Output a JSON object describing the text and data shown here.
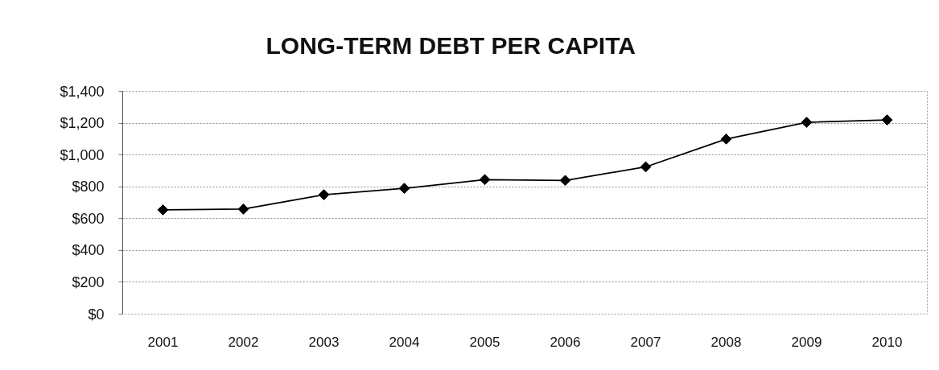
{
  "chart_data": {
    "type": "line",
    "title": "LONG-TERM DEBT PER CAPITA",
    "categories": [
      "2001",
      "2002",
      "2003",
      "2004",
      "2005",
      "2006",
      "2007",
      "2008",
      "2009",
      "2010"
    ],
    "values": [
      655,
      660,
      750,
      790,
      845,
      840,
      925,
      1100,
      1205,
      1220
    ],
    "color": "#000000",
    "ylim": [
      0,
      1400
    ],
    "yticks": [
      {
        "value": 0,
        "label": "$0"
      },
      {
        "value": 200,
        "label": "$200"
      },
      {
        "value": 400,
        "label": "$400"
      },
      {
        "value": 600,
        "label": "$600"
      },
      {
        "value": 800,
        "label": "$800"
      },
      {
        "value": 1000,
        "label": "$1,000"
      },
      {
        "value": 1200,
        "label": "$1,200"
      },
      {
        "value": 1400,
        "label": "$1,400"
      }
    ],
    "grid": "y",
    "marker": "diamond",
    "line_style": "solid"
  }
}
